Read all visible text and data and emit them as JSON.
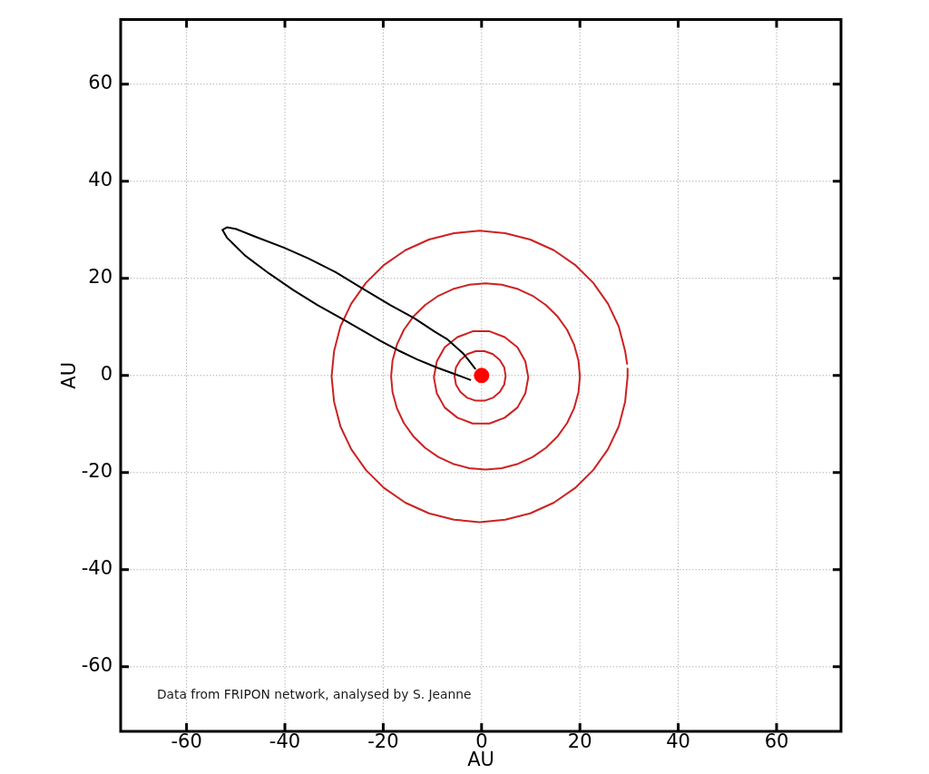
{
  "chart_data": {
    "type": "line",
    "xlabel": "AU",
    "ylabel": "AU",
    "xlim": [
      -73.4,
      73.1
    ],
    "ylim": [
      -73.3,
      73.3
    ],
    "xticks": [
      -60,
      -40,
      -20,
      0,
      20,
      40,
      60
    ],
    "yticks": [
      -60,
      -40,
      -20,
      0,
      20,
      40,
      60
    ],
    "grid": true,
    "line_style": "solid",
    "annotations": [
      "Data from FRIPON network, analysed by S. Jeanne"
    ],
    "series": [
      {
        "color": "#000000",
        "x": [
          -2.3,
          -5.2,
          -9.0,
          -13.1,
          -17.0,
          -20.5,
          -24.1,
          -28.6,
          -33.4,
          -38.3,
          -43.2,
          -48.1,
          -51.8,
          -52.7,
          -51.8,
          -50.0,
          -46.3,
          -40.1,
          -35.2,
          -29.7,
          -24.7,
          -18.6,
          -13.7,
          -9.5,
          -6.9,
          -3.8,
          -2.6,
          -1.3
        ],
        "values": [
          -0.9,
          0.2,
          1.6,
          3.3,
          5.2,
          7.1,
          9.2,
          11.8,
          14.5,
          17.6,
          21.0,
          24.7,
          28.4,
          30.0,
          30.5,
          30.2,
          28.7,
          26.3,
          24.1,
          21.3,
          18.2,
          14.5,
          11.8,
          9.0,
          7.4,
          4.6,
          3.1,
          1.4
        ]
      },
      {
        "color": "#cc2222",
        "x": [
          29.6,
          29.2,
          27.9,
          25.7,
          22.7,
          19.0,
          14.7,
          9.9,
          4.8,
          -0.4,
          -5.6,
          -10.7,
          -15.5,
          -19.8,
          -23.5,
          -26.5,
          -28.7,
          -30.0,
          -30.5,
          -30.0,
          -28.7,
          -26.5,
          -23.5,
          -19.8,
          -15.5,
          -10.7,
          -5.6,
          -0.4,
          4.8,
          9.9,
          14.7,
          19.0,
          22.7,
          25.7,
          27.9,
          29.2,
          29.7,
          29.7
        ],
        "values": [
          2.4,
          5.0,
          10.1,
          14.8,
          19.1,
          22.8,
          25.8,
          28.0,
          29.3,
          29.8,
          29.3,
          28.0,
          25.8,
          22.8,
          19.1,
          14.8,
          10.1,
          5.0,
          -0.2,
          -5.4,
          -10.5,
          -15.2,
          -19.5,
          -23.2,
          -26.2,
          -28.4,
          -29.7,
          -30.2,
          -29.7,
          -28.4,
          -26.2,
          -23.2,
          -19.5,
          -15.2,
          -10.5,
          -5.4,
          -0.2,
          1.4
        ]
      },
      {
        "color": "#cc2222",
        "x": [
          20.0,
          19.7,
          18.8,
          17.4,
          15.5,
          13.1,
          10.4,
          7.4,
          4.1,
          0.8,
          -2.5,
          -5.8,
          -8.8,
          -11.5,
          -13.9,
          -15.8,
          -17.2,
          -18.1,
          -18.4,
          -18.1,
          -17.2,
          -15.8,
          -13.9,
          -11.5,
          -8.8,
          -5.8,
          -2.5,
          0.8,
          4.1,
          7.4,
          10.4,
          13.1,
          15.5,
          17.4,
          18.8,
          19.7,
          20.0,
          19.7
        ],
        "values": [
          -0.2,
          3.1,
          6.4,
          9.4,
          12.1,
          14.5,
          16.4,
          17.8,
          18.7,
          19.0,
          18.7,
          17.8,
          16.4,
          14.5,
          12.1,
          9.4,
          6.4,
          3.1,
          -0.2,
          -3.5,
          -6.8,
          -9.8,
          -12.5,
          -14.9,
          -16.8,
          -18.2,
          -19.1,
          -19.4,
          -19.1,
          -18.2,
          -16.8,
          -14.9,
          -12.5,
          -9.8,
          -6.8,
          -3.5,
          -0.2,
          3.1
        ]
      },
      {
        "color": "#cc2222",
        "x": [
          9.5,
          8.9,
          7.3,
          4.7,
          1.6,
          -1.8,
          -4.9,
          -7.5,
          -9.1,
          -9.7,
          -9.1,
          -7.5,
          -4.9,
          -1.8,
          1.6,
          4.7,
          7.3,
          8.9,
          9.5,
          8.9
        ],
        "values": [
          -0.4,
          2.9,
          5.8,
          7.9,
          9.1,
          9.1,
          7.9,
          5.8,
          2.9,
          -0.4,
          -3.7,
          -6.6,
          -8.7,
          -9.9,
          -9.9,
          -8.7,
          -6.6,
          -3.7,
          -0.4,
          2.9
        ]
      },
      {
        "color": "#cc2222",
        "x": [
          4.9,
          4.6,
          3.7,
          2.3,
          0.6,
          -1.2,
          -2.9,
          -4.3,
          -5.2,
          -5.5,
          -5.2,
          -4.3,
          -2.9,
          -1.2,
          0.6,
          2.3,
          3.7,
          4.6,
          4.9,
          4.6
        ],
        "values": [
          -0.1,
          1.7,
          3.2,
          4.4,
          5.0,
          5.0,
          4.4,
          3.2,
          1.7,
          -0.1,
          -1.9,
          -3.4,
          -4.6,
          -5.2,
          -5.2,
          -4.6,
          -3.4,
          -1.9,
          -0.1,
          1.7
        ]
      },
      {
        "type": "scatter",
        "marker": "circle",
        "color": "#ff0000",
        "x": [
          0
        ],
        "values": [
          0
        ]
      }
    ]
  }
}
